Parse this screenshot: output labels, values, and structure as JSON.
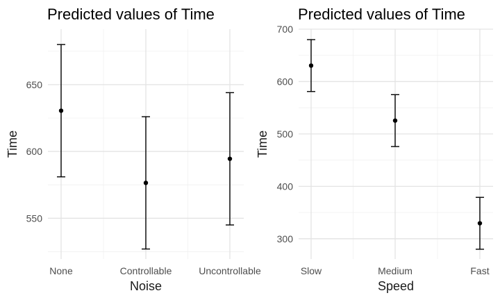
{
  "chart_data": [
    {
      "type": "scatter",
      "subtype": "point-with-error-bars",
      "title": "Predicted values of Time",
      "xlabel": "Noise",
      "ylabel": "Time",
      "categories": [
        "None",
        "Controllable",
        "Uncontrollable"
      ],
      "series": [
        {
          "values": [
            630.5,
            576.5,
            594.5
          ],
          "lower": [
            581,
            527,
            545
          ],
          "upper": [
            680,
            626,
            644
          ]
        }
      ],
      "ylim": [
        519.5,
        691.5
      ],
      "yticks": [
        550,
        600,
        650
      ],
      "ytick_labels": [
        "550",
        "600",
        "650"
      ],
      "grid": true,
      "legend": "none"
    },
    {
      "type": "scatter",
      "subtype": "point-with-error-bars",
      "title": "Predicted values of Time",
      "xlabel": "Speed",
      "ylabel": "Time",
      "categories": [
        "Slow",
        "Medium",
        "Fast"
      ],
      "series": [
        {
          "values": [
            630.5,
            525.5,
            329.5
          ],
          "lower": [
            581,
            476,
            280
          ],
          "upper": [
            680,
            575,
            379
          ]
        }
      ],
      "ylim": [
        261.3,
        700
      ],
      "yticks": [
        300,
        400,
        500,
        600,
        700
      ],
      "ytick_labels": [
        "300",
        "400",
        "500",
        "600",
        "700"
      ],
      "grid": true,
      "legend": "none"
    }
  ]
}
